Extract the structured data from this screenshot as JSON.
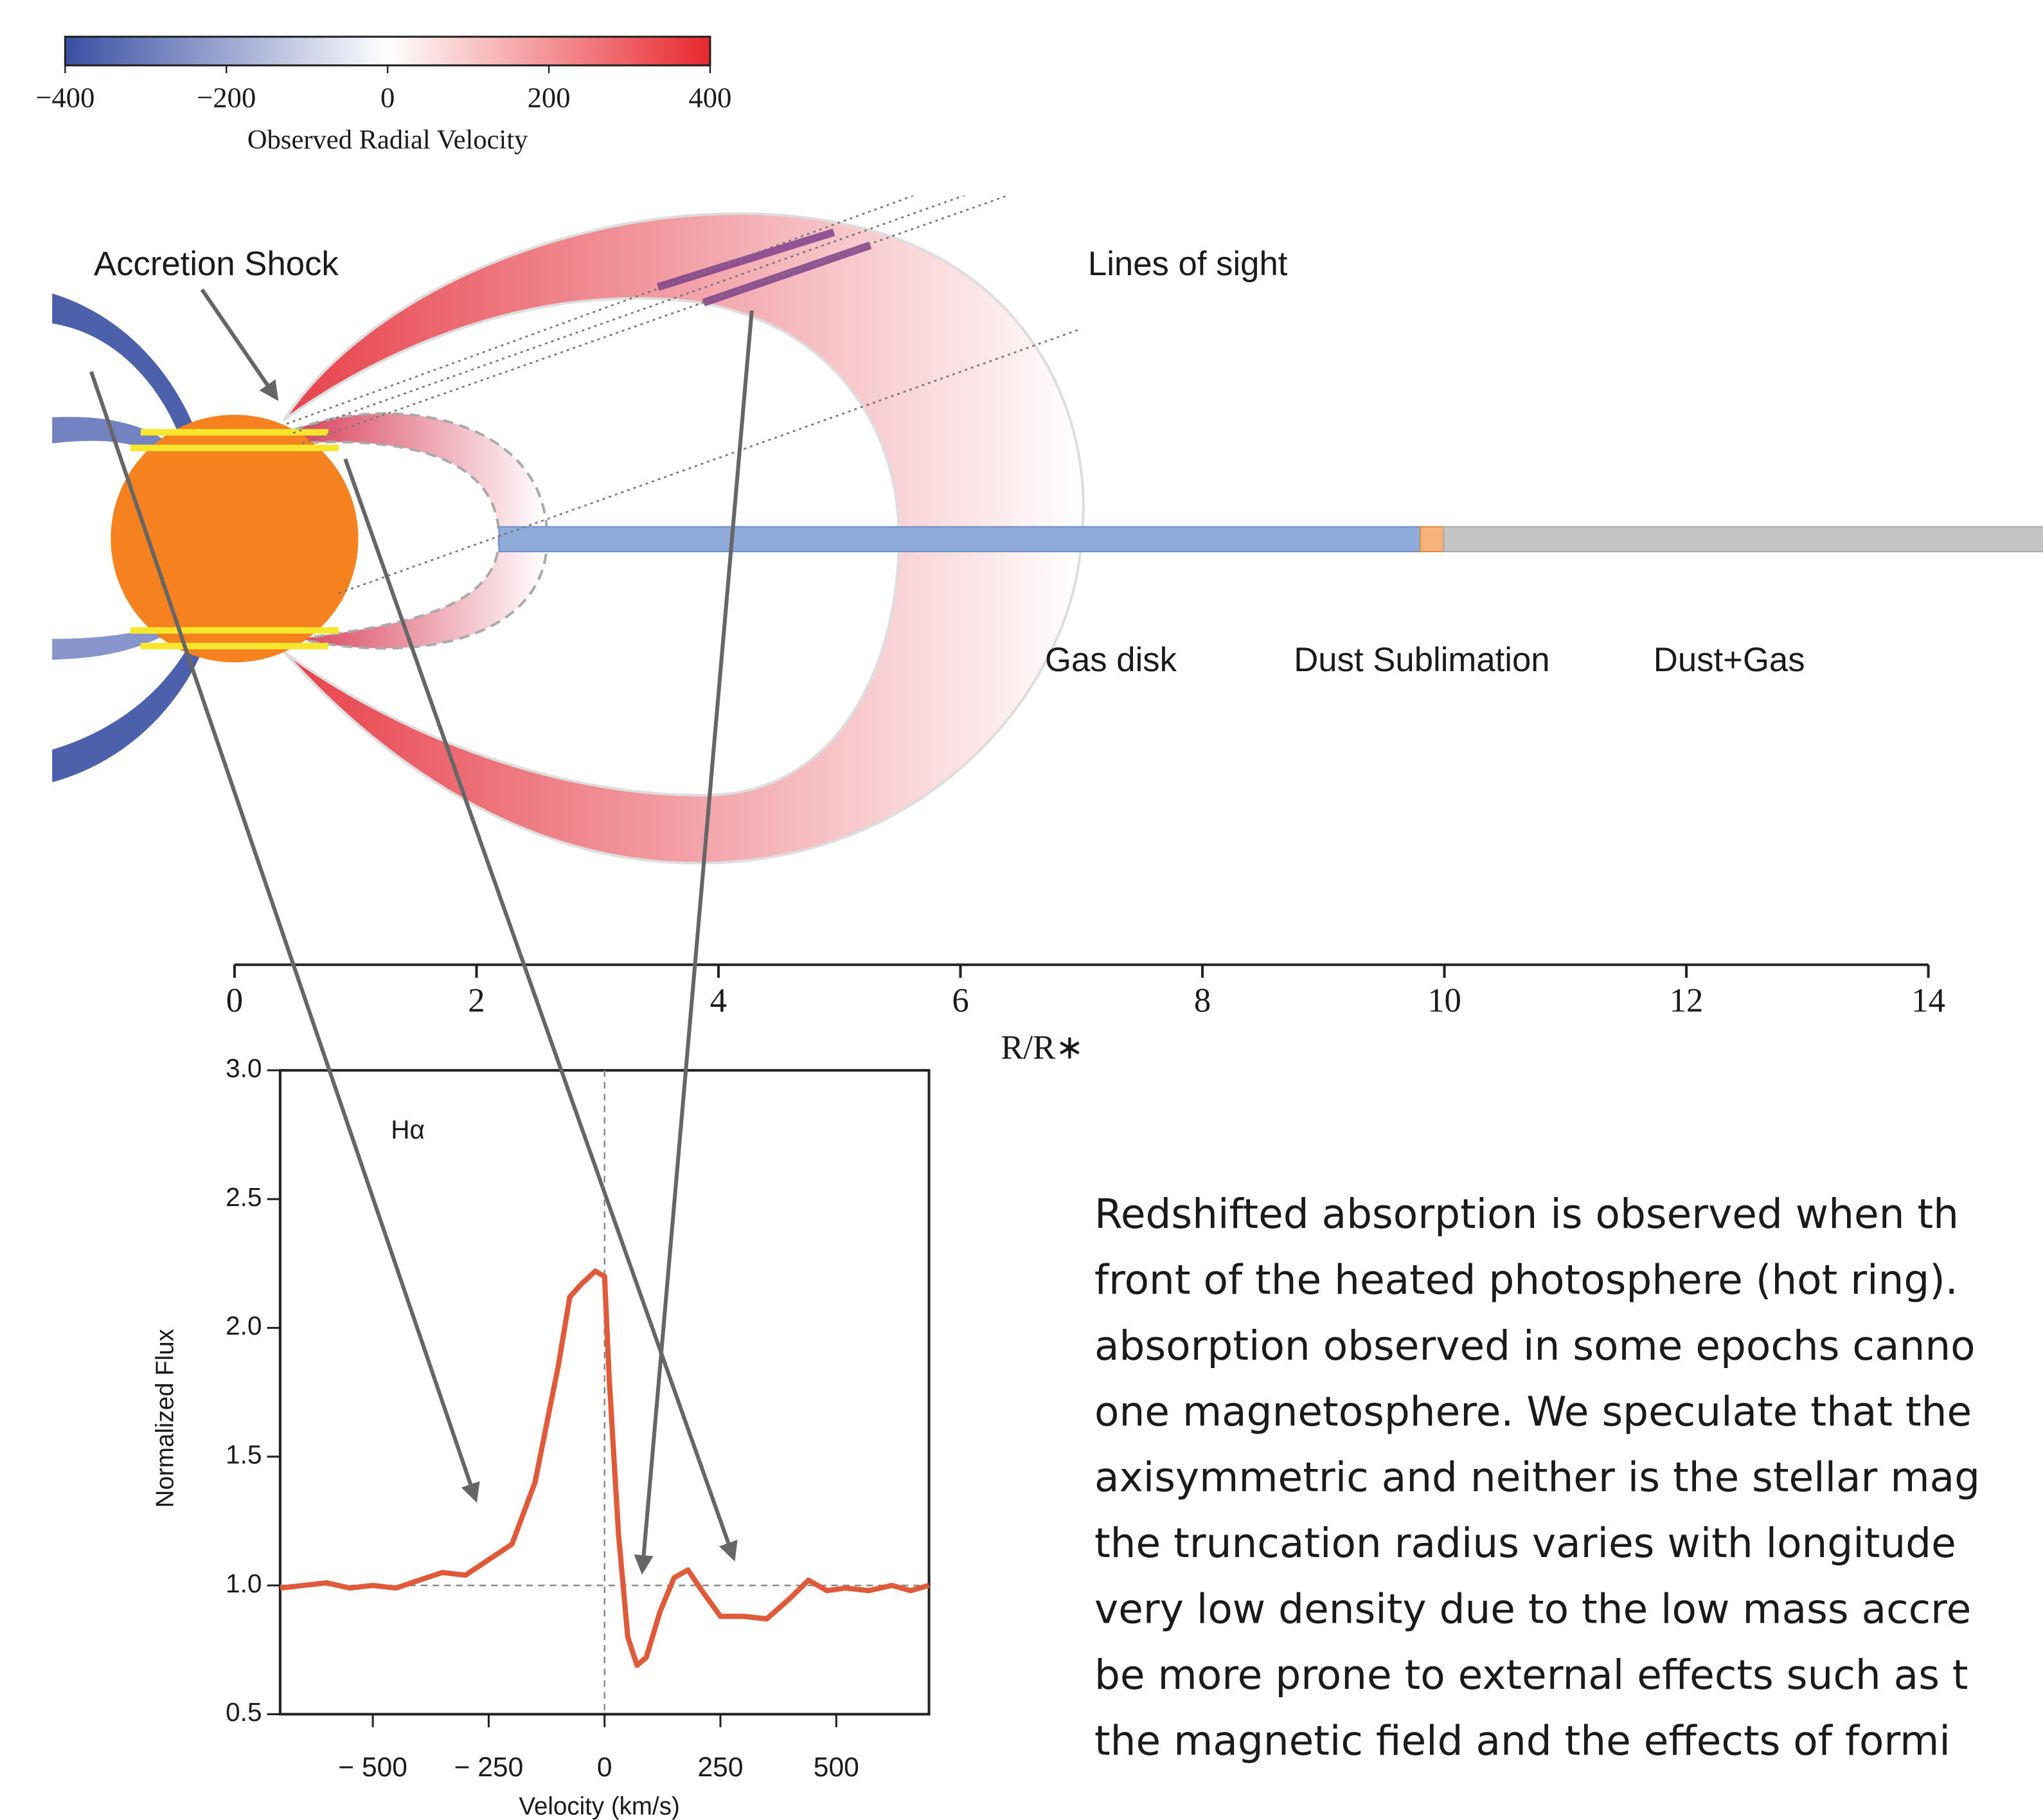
{
  "chart_data": [
    {
      "type": "colorbar",
      "xlabel": "Observed Radial Velocity",
      "xlim": [
        -400,
        400
      ],
      "xticks": [
        {
          "value": -400,
          "label": "−400"
        },
        {
          "value": -200,
          "label": "−200"
        },
        0,
        200,
        400
      ],
      "colors": [
        "#3a4fa3",
        "#ffffff",
        "#e8282e"
      ]
    },
    {
      "type": "axis",
      "xlabel": "R/R∗",
      "xlim": [
        0,
        14
      ],
      "xticks": [
        0,
        2,
        4,
        6,
        8,
        10,
        12,
        14
      ]
    },
    {
      "type": "line",
      "annotation": "Hα",
      "xlabel": "Velocity (km/s)",
      "ylabel": "Normalized Flux",
      "xlim": [
        -700,
        700
      ],
      "ylim": [
        0.5,
        3.0
      ],
      "xticks": [
        {
          "value": -500,
          "label": "− 500"
        },
        {
          "value": -250,
          "label": "− 250"
        },
        0,
        250,
        500
      ],
      "yticks": [
        0.5,
        {
          "value": 1.0,
          "label": "1.0"
        },
        1.5,
        {
          "value": 2.0,
          "label": "2.0"
        },
        2.5,
        {
          "value": 3.0,
          "label": "3.0"
        }
      ],
      "x": [
        -700,
        -650,
        -600,
        -550,
        -500,
        -450,
        -400,
        -350,
        -300,
        -250,
        -200,
        -150,
        -100,
        -75,
        -50,
        -20,
        0,
        10,
        30,
        50,
        70,
        90,
        120,
        150,
        180,
        210,
        250,
        300,
        350,
        400,
        440,
        480,
        520,
        570,
        620,
        660,
        700
      ],
      "values": [
        0.99,
        1.0,
        1.01,
        0.99,
        1.0,
        0.99,
        1.02,
        1.05,
        1.04,
        1.1,
        1.16,
        1.4,
        1.85,
        2.12,
        2.17,
        2.22,
        2.2,
        1.8,
        1.2,
        0.8,
        0.69,
        0.72,
        0.9,
        1.03,
        1.06,
        0.98,
        0.88,
        0.88,
        0.87,
        0.95,
        1.02,
        0.98,
        0.99,
        0.98,
        1.0,
        0.98,
        1.0
      ],
      "color": "#e05a3a"
    }
  ],
  "diagram": {
    "labels": [
      "Accretion Shock",
      "Lines of sight",
      "Gas disk",
      "Dust Sublimation",
      "Dust+Gas"
    ]
  },
  "text": {
    "lines": [
      "Redshifted absorption is observed when th",
      "front of the heated photosphere (hot ring).",
      "absorption observed in some epochs canno",
      "one magnetosphere. We speculate that the",
      "axisymmetric and neither is the stellar mag",
      "the truncation radius varies with longitude",
      "very low density due to the low mass accre",
      "be more prone to external effects such as t",
      "the magnetic field and the effects of formi"
    ]
  }
}
